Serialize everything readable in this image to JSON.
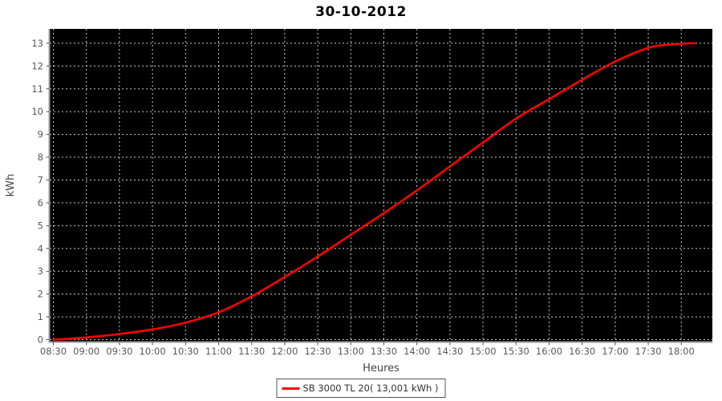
{
  "title": "30-10-2012",
  "axes": {
    "x_label": "Heures",
    "y_label": "kWh"
  },
  "legend": {
    "label": "SB 3000 TL 20( 13,001 kWh )"
  },
  "colors": {
    "series": "#ff0000",
    "plot_background": "#000000",
    "grid": "#c8c8c8",
    "axis_line": "#9e9e9e",
    "tick": "#555555",
    "tick_label": "#585858",
    "axis_title": "#444444",
    "title": "#000000",
    "legend_border": "#555555",
    "legend_text": "#333333"
  },
  "chart_data": {
    "type": "line",
    "title": "30-10-2012",
    "xlabel": "Heures",
    "ylabel": "kWh",
    "x_tick_labels": [
      "08:30",
      "09:00",
      "09:30",
      "10:00",
      "10:30",
      "11:00",
      "11:30",
      "12:00",
      "12:30",
      "13:00",
      "13:30",
      "14:00",
      "14:30",
      "15:00",
      "15:30",
      "16:00",
      "16:30",
      "17:00",
      "17:30",
      "18:00"
    ],
    "x_tick_hours": [
      8.5,
      9.0,
      9.5,
      10.0,
      10.5,
      11.0,
      11.5,
      12.0,
      12.5,
      13.0,
      13.5,
      14.0,
      14.5,
      15.0,
      15.5,
      16.0,
      16.5,
      17.0,
      17.5,
      18.0
    ],
    "y_ticks": [
      0,
      1,
      2,
      3,
      4,
      5,
      6,
      7,
      8,
      9,
      10,
      11,
      12,
      13
    ],
    "xlim_hours": [
      8.445,
      18.47
    ],
    "ylim": [
      0,
      13.63
    ],
    "grid": true,
    "grid_style": "dashed",
    "legend_position": "bottom",
    "series": [
      {
        "name": "SB 3000 TL 20",
        "total_label": "13,001 kWh",
        "color": "#ff0000",
        "points_hours_kwh": [
          [
            8.5,
            0.0
          ],
          [
            8.75,
            0.04
          ],
          [
            9.0,
            0.1
          ],
          [
            9.5,
            0.25
          ],
          [
            10.0,
            0.45
          ],
          [
            10.5,
            0.75
          ],
          [
            11.0,
            1.2
          ],
          [
            11.5,
            1.9
          ],
          [
            12.0,
            2.75
          ],
          [
            12.5,
            3.65
          ],
          [
            13.0,
            4.6
          ],
          [
            13.5,
            5.55
          ],
          [
            14.0,
            6.55
          ],
          [
            14.5,
            7.6
          ],
          [
            15.0,
            8.65
          ],
          [
            15.5,
            9.7
          ],
          [
            16.0,
            10.55
          ],
          [
            16.5,
            11.4
          ],
          [
            17.0,
            12.2
          ],
          [
            17.5,
            12.8
          ],
          [
            17.75,
            12.92
          ],
          [
            18.0,
            12.98
          ],
          [
            18.2,
            13.0
          ]
        ]
      }
    ]
  }
}
